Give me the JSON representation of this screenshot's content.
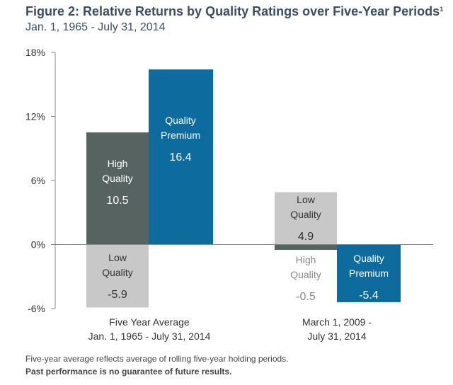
{
  "header": {
    "title": "Figure 2: Relative Returns by Quality Ratings over Five-Year Periods",
    "title_superscript": "1",
    "subtitle": "Jan. 1, 1965 - July 31, 2014"
  },
  "footnotes": {
    "note": "Five-year average reflects average of rolling five-year holding periods.",
    "disclaimer": "Past performance is no guarantee of future results."
  },
  "colors": {
    "high_quality": "#566360",
    "quality_premium": "#0e6b9e",
    "low_quality": "#c8c8c8",
    "axis": "#888888",
    "tick_label": "#333333",
    "title": "#3c4e64"
  },
  "chart_data": {
    "type": "bar",
    "ylim": [
      -6,
      18
    ],
    "yticks": [
      18,
      12,
      6,
      0,
      -6
    ],
    "ytick_labels": [
      "18%",
      "12%",
      "6%",
      "0%",
      "-6%"
    ],
    "grid": false,
    "categories": [
      [
        "Five Year Average",
        "Jan. 1, 1965 - July 31, 2014"
      ],
      [
        "March 1, 2009 -",
        "July 31, 2014"
      ]
    ],
    "series": [
      {
        "name": "High Quality",
        "values": [
          10.5,
          -0.5
        ],
        "labels": [
          "10.5",
          "-0.5"
        ]
      },
      {
        "name": "Quality Premium",
        "values": [
          16.4,
          -5.4
        ],
        "labels": [
          "16.4",
          "-5.4"
        ]
      },
      {
        "name": "Low Quality",
        "values": [
          -5.9,
          4.9
        ],
        "labels": [
          "-5.9",
          "4.9"
        ]
      }
    ]
  }
}
